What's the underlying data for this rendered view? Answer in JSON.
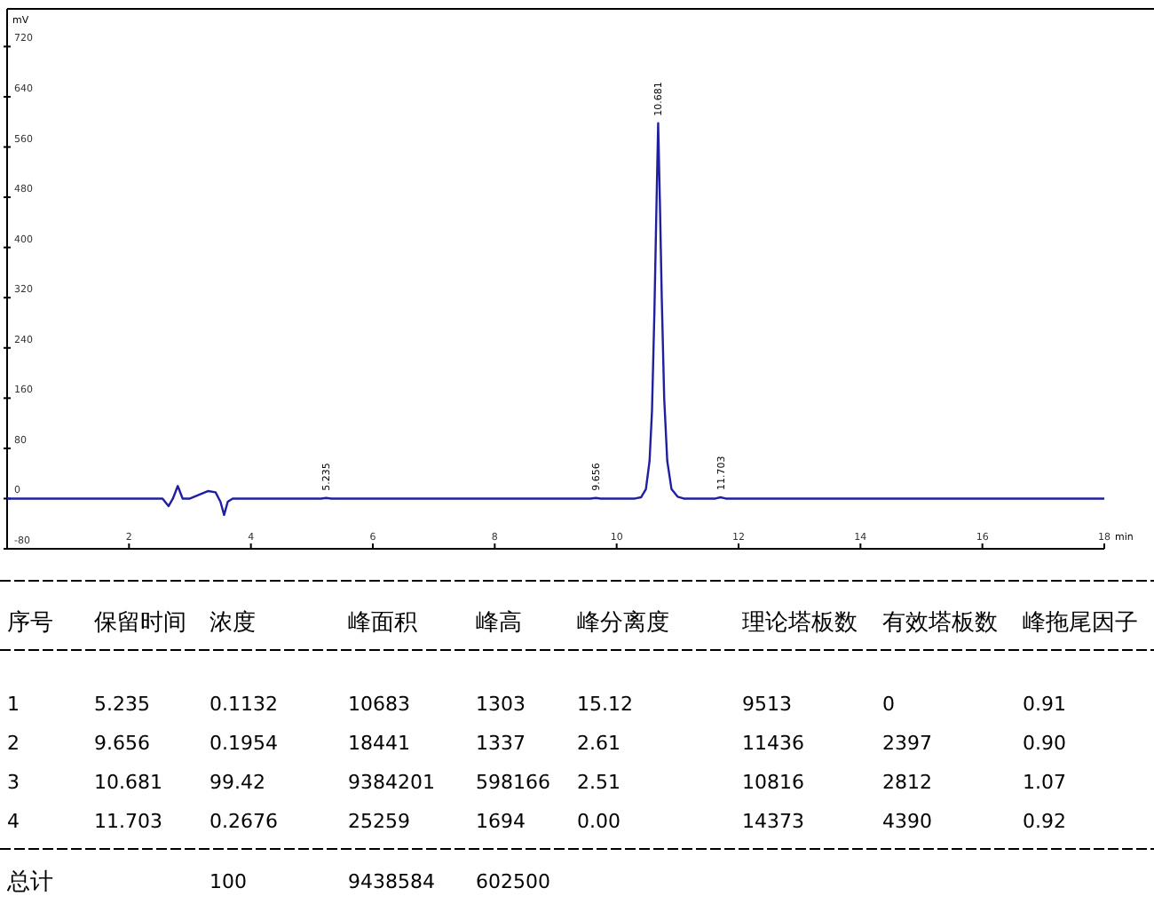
{
  "chart_data": {
    "type": "line",
    "xlabel": "min",
    "ylabel": "mV",
    "xlim": [
      0,
      18
    ],
    "ylim": [
      -80,
      780
    ],
    "xticks": [
      2,
      4,
      6,
      8,
      10,
      12,
      14,
      16,
      18
    ],
    "yticks": [
      -80,
      0,
      80,
      160,
      240,
      320,
      400,
      480,
      560,
      640,
      720
    ],
    "grid": false,
    "marker": "none",
    "line_style": "solid",
    "series": [
      {
        "color": "#1f1fa0",
        "x": [
          0,
          2.55,
          2.65,
          2.72,
          2.8,
          2.88,
          3.0,
          3.15,
          3.3,
          3.42,
          3.5,
          3.56,
          3.62,
          3.7,
          5.15,
          5.235,
          5.32,
          9.57,
          9.656,
          9.74,
          10.3,
          10.4,
          10.48,
          10.54,
          10.58,
          10.62,
          10.65,
          10.681,
          10.71,
          10.74,
          10.78,
          10.83,
          10.9,
          11.0,
          11.1,
          11.62,
          11.703,
          11.79,
          18
        ],
        "values": [
          0,
          0,
          -12,
          0,
          20,
          0,
          0,
          6,
          12,
          10,
          -5,
          -26,
          -5,
          0,
          0,
          1,
          0,
          0,
          1,
          0,
          0,
          2,
          15,
          60,
          140,
          300,
          450,
          598,
          470,
          320,
          160,
          60,
          15,
          3,
          0,
          0,
          2,
          0,
          0
        ]
      }
    ],
    "annotations": [
      {
        "text": "5.235",
        "x": 5.235,
        "y": 1
      },
      {
        "text": "9.656",
        "x": 9.656,
        "y": 1
      },
      {
        "text": "10.681",
        "x": 10.681,
        "y": 598
      },
      {
        "text": "11.703",
        "x": 11.703,
        "y": 2
      },
      "序号",
      "保留时间",
      "浓度",
      "峰面积",
      "峰高",
      "峰分离度",
      "理论塔板数",
      "有效塔板数",
      "峰拖尾因子",
      "1",
      "5.235",
      "0.1132",
      "10683",
      "1303",
      "15.12",
      "9513",
      "0",
      "0.91",
      "2",
      "9.656",
      "0.1954",
      "18441",
      "1337",
      "2.61",
      "11436",
      "2397",
      "0.90",
      "3",
      "10.681",
      "99.42",
      "9384201",
      "598166",
      "2.51",
      "10816",
      "2812",
      "1.07",
      "4",
      "11.703",
      "0.2676",
      "25259",
      "1694",
      "0.00",
      "14373",
      "4390",
      "0.92",
      "总计",
      "100",
      "9438584",
      "602500"
    ]
  }
}
